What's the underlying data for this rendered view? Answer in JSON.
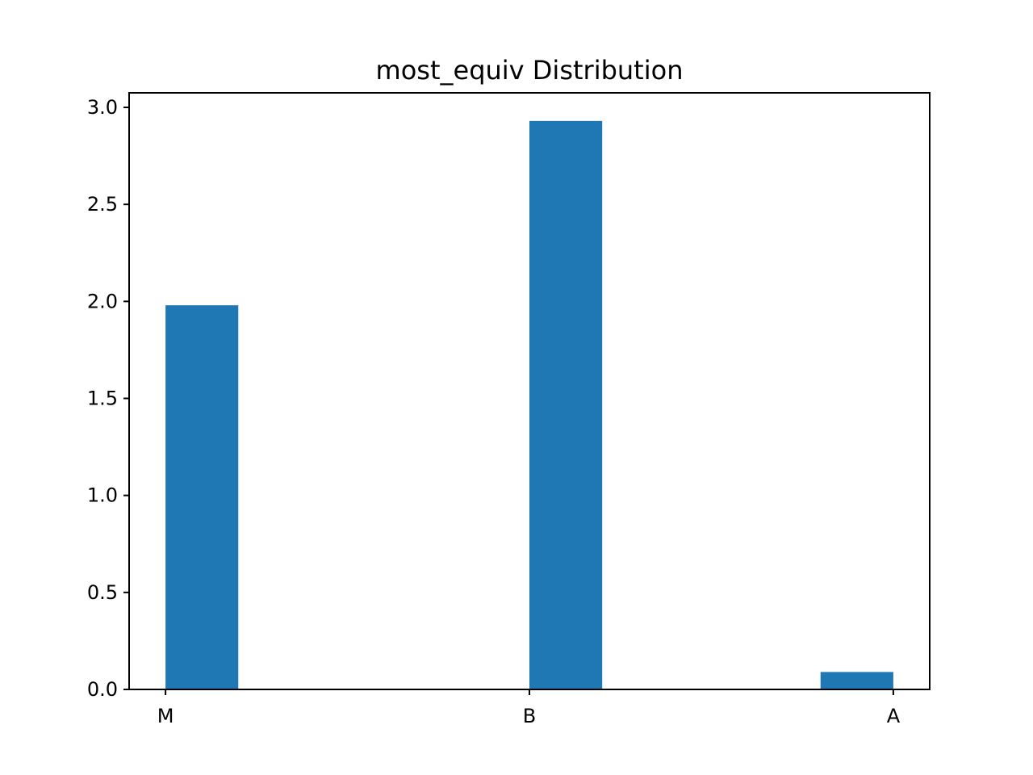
{
  "chart_data": {
    "type": "bar",
    "title": "most_equiv Distribution",
    "xlabel": "",
    "ylabel": "",
    "x_tick_labels": [
      "M",
      "B",
      "A"
    ],
    "x_tick_positions": [
      0,
      1,
      2
    ],
    "bars": [
      {
        "x_start": 0.0,
        "x_end": 0.2,
        "value": 1.98
      },
      {
        "x_start": 1.0,
        "x_end": 1.2,
        "value": 2.93
      },
      {
        "x_start": 1.8,
        "x_end": 2.0,
        "value": 0.09
      }
    ],
    "xlim": [
      -0.1,
      2.1
    ],
    "ylim": [
      0,
      3.075
    ],
    "y_ticks": [
      0.0,
      0.5,
      1.0,
      1.5,
      2.0,
      2.5,
      3.0
    ],
    "y_tick_labels": [
      "0.0",
      "0.5",
      "1.0",
      "1.5",
      "2.0",
      "2.5",
      "3.0"
    ],
    "bar_color": "#1f77b4",
    "grid": false,
    "legend": "none"
  }
}
